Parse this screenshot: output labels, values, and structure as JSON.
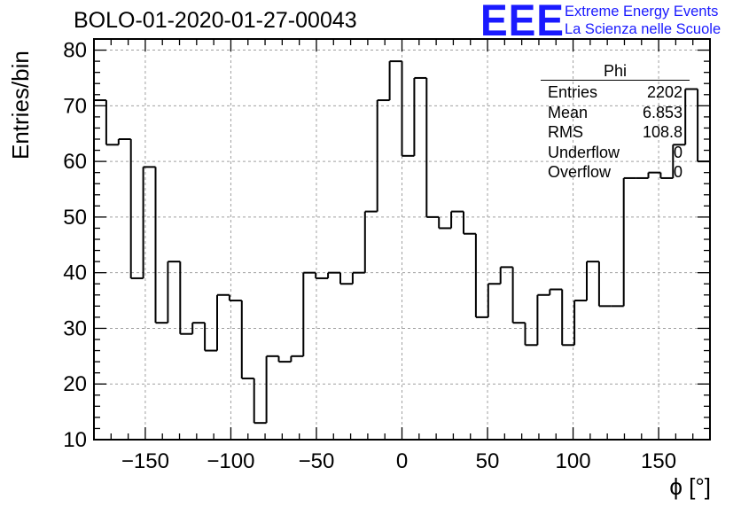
{
  "chart_data": {
    "type": "histogram",
    "title": "BOLO-01-2020-01-27-00043",
    "xlabel": "ϕ [°]",
    "ylabel": "Entries/bin",
    "xlim": [
      -180,
      180
    ],
    "ylim": [
      10,
      82
    ],
    "grid": true,
    "bin_width": 7.2,
    "x_ticks": [
      -150,
      -100,
      -50,
      0,
      50,
      100,
      150
    ],
    "y_ticks": [
      10,
      20,
      30,
      40,
      50,
      60,
      70,
      80
    ],
    "bin_edges_start": -180,
    "values": [
      71,
      63,
      64,
      39,
      59,
      31,
      42,
      29,
      31,
      26,
      36,
      35,
      21,
      13,
      25,
      24,
      25,
      40,
      39,
      40,
      38,
      40,
      51,
      71,
      78,
      61,
      75,
      50,
      48,
      51,
      47,
      32,
      38,
      41,
      31,
      27,
      36,
      37,
      27,
      35,
      42,
      34,
      34,
      57,
      57,
      58,
      57,
      63,
      73,
      60
    ],
    "stats": {
      "title": "Phi",
      "rows": [
        {
          "label": "Entries",
          "value": "2202"
        },
        {
          "label": "Mean",
          "value": "6.853"
        },
        {
          "label": "RMS",
          "value": "108.8"
        },
        {
          "label": "Underflow",
          "value": "0"
        },
        {
          "label": "Overflow",
          "value": "0"
        }
      ]
    }
  },
  "logo": {
    "mark": "EEE",
    "line1": "Extreme Energy Events",
    "line2": "La Scienza nelle Scuole"
  },
  "colors": {
    "accent": "#1a1aff",
    "grid": "#a0a0a0",
    "line": "#000000"
  }
}
